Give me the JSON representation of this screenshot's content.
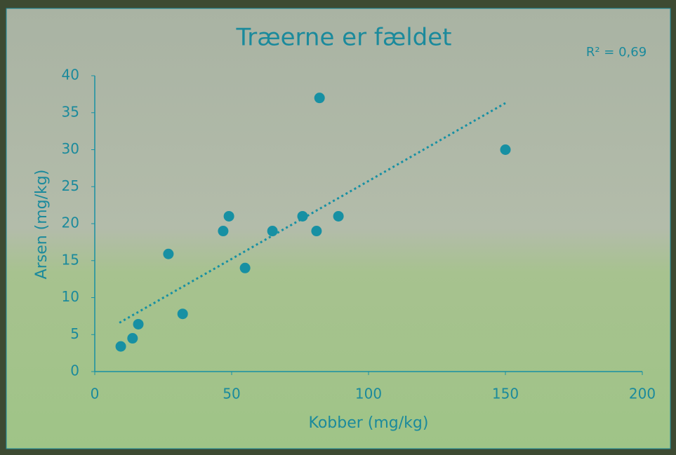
{
  "chart_data": {
    "type": "scatter",
    "title": "Træerne er fældet",
    "annotation": "R² = 0,69",
    "x_label": "Kobber (mg/kg)",
    "y_label": "Arsen (mg/kg)",
    "color": "#1790a3",
    "x": [
      9.5,
      13.8,
      15.9,
      26.9,
      32.1,
      46.9,
      49.0,
      54.9,
      64.9,
      75.9,
      81.0,
      82.1,
      89.0,
      150.0
    ],
    "values": [
      3.4,
      4.5,
      6.4,
      15.9,
      7.8,
      19.0,
      21.0,
      14.0,
      19.0,
      21.0,
      19.0,
      37.0,
      21.0,
      30.0
    ],
    "trendline": {
      "x": [
        9,
        150
      ],
      "values": [
        6.6,
        36.3
      ],
      "color": "#1790a3"
    },
    "xlim": [
      0,
      200
    ],
    "ylim": [
      0,
      40
    ],
    "xticks": [
      0,
      50,
      100,
      150,
      200
    ],
    "yticks": [
      0,
      5,
      10,
      15,
      20,
      25,
      30,
      35,
      40
    ]
  }
}
